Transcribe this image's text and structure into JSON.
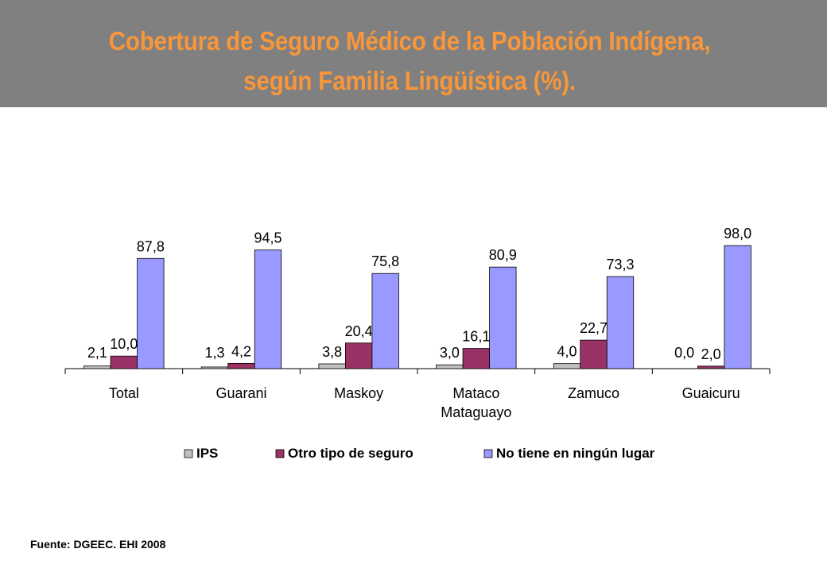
{
  "title": {
    "line1": "Cobertura de Seguro Médico de la Población Indígena,",
    "line2": "según Familia Lingüística (%)."
  },
  "source": "Fuente: DGEEC. EHI 2008",
  "colors": {
    "header_bg": "#808080",
    "title": "#f7963a"
  },
  "chart_data": {
    "type": "bar",
    "categories": [
      [
        "Total"
      ],
      [
        "Guarani"
      ],
      [
        "Maskoy"
      ],
      [
        "Mataco",
        "Mataguayo"
      ],
      [
        "Zamuco"
      ],
      [
        "Guaicuru"
      ]
    ],
    "series": [
      {
        "name": "IPS",
        "color": "#c0c0c0",
        "values": [
          2.1,
          1.3,
          3.8,
          3.0,
          4.0,
          0.0
        ],
        "labels": [
          "2,1",
          "1,3",
          "3,8",
          "3,0",
          "4,0",
          "0,0"
        ]
      },
      {
        "name": "Otro tipo de seguro",
        "color": "#993366",
        "values": [
          10.0,
          4.2,
          20.4,
          16.1,
          22.7,
          2.0
        ],
        "labels": [
          "10,0",
          "4,2",
          "20,4",
          "16,1",
          "22,7",
          "2,0"
        ]
      },
      {
        "name": "No tiene en ningún lugar",
        "color": "#9999ff",
        "values": [
          87.8,
          94.5,
          75.8,
          80.9,
          73.3,
          98.0
        ],
        "labels": [
          "87,8",
          "94,5",
          "75,8",
          "80,9",
          "73,3",
          "98,0"
        ]
      }
    ],
    "ylim": [
      0,
      100
    ],
    "grid": false,
    "legend": "bottom"
  }
}
